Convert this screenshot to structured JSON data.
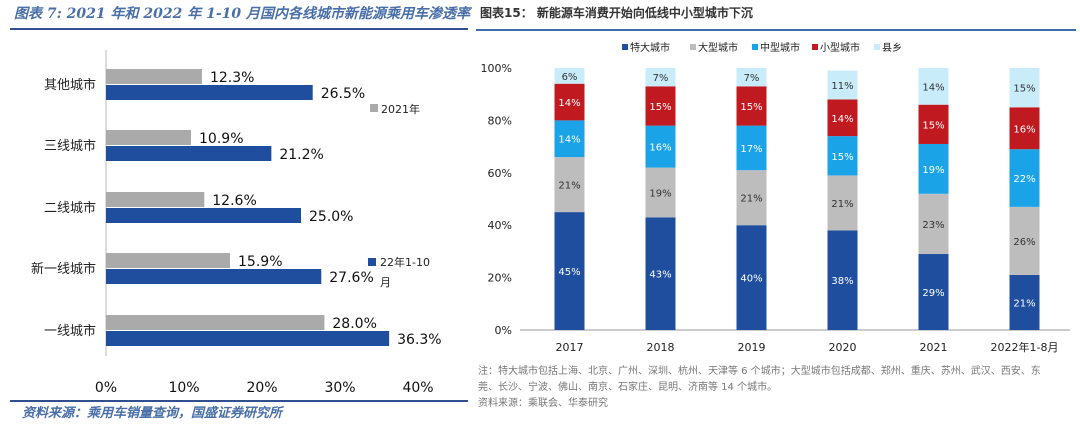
{
  "left": {
    "title": "图表 7:  2021 年和 2022 年 1-10 月国内各线城市新能源乘用车渗透率",
    "source": "资料来源：乘用车销量查询，国盛证券研究所"
  },
  "right": {
    "title": "图表15：  新能源车消费开始向低线中小型城市下沉",
    "note_line1": "注：特大城市包括上海、北京、广州、深圳、杭州、天津等 6 个城市；大型城市包括成都、郑州、重庆、苏州、武汉、西安、东",
    "note_line2": "莞、长沙、宁波、佛山、南京、石家庄、昆明、济南等 14 个城市。",
    "note_line3": "资料来源：乘联会、华泰研究"
  },
  "chart_data": [
    {
      "type": "bar",
      "orientation": "horizontal",
      "categories": [
        "其他城市",
        "三线城市",
        "二线城市",
        "新一线城市",
        "一线城市"
      ],
      "series": [
        {
          "name": "2021年",
          "color": "#aaaaaa",
          "values": [
            12.3,
            10.9,
            12.6,
            15.9,
            28.0
          ],
          "labels": [
            "12.3%",
            "10.9%",
            "12.6%",
            "15.9%",
            "28.0%"
          ]
        },
        {
          "name": "22年1-10月",
          "color": "#1f4e9e",
          "values": [
            26.5,
            21.2,
            25.0,
            27.6,
            36.3
          ],
          "labels": [
            "26.5%",
            "21.2%",
            "25.0%",
            "27.6%",
            "36.3%"
          ]
        }
      ],
      "legend": [
        "2021年",
        "22年1-10",
        "月"
      ],
      "xlim": [
        0,
        40
      ],
      "xticks": [
        "0%",
        "10%",
        "20%",
        "30%",
        "40%"
      ]
    },
    {
      "type": "bar",
      "stacked": true,
      "categories": [
        "2017",
        "2018",
        "2019",
        "2020",
        "2021",
        "2022年1-8月"
      ],
      "series": [
        {
          "name": "特大城市",
          "color": "#1f4e9e",
          "values": [
            45,
            43,
            40,
            38,
            29,
            21
          ],
          "labels": [
            "45%",
            "43%",
            "40%",
            "38%",
            "29%",
            "21%"
          ]
        },
        {
          "name": "大型城市",
          "color": "#bdbdbd",
          "values": [
            21,
            19,
            21,
            21,
            23,
            26
          ],
          "labels": [
            "21%",
            "19%",
            "21%",
            "21%",
            "23%",
            "26%"
          ]
        },
        {
          "name": "中型城市",
          "color": "#1aa3e6",
          "values": [
            14,
            16,
            17,
            15,
            19,
            22
          ],
          "labels": [
            "14%",
            "16%",
            "17%",
            "15%",
            "19%",
            "22%"
          ]
        },
        {
          "name": "小型城市",
          "color": "#c0191f",
          "values": [
            14,
            15,
            15,
            14,
            15,
            16
          ],
          "labels": [
            "14%",
            "15%",
            "15%",
            "14%",
            "15%",
            "16%"
          ]
        },
        {
          "name": "县乡",
          "color": "#c9ecfb",
          "values": [
            6,
            7,
            7,
            11,
            14,
            15
          ],
          "labels": [
            "6%",
            "7%",
            "7%",
            "11%",
            "14%",
            "15%"
          ]
        }
      ],
      "ylim": [
        0,
        100
      ],
      "yticks": [
        "0%",
        "20%",
        "40%",
        "60%",
        "80%",
        "100%"
      ]
    }
  ]
}
